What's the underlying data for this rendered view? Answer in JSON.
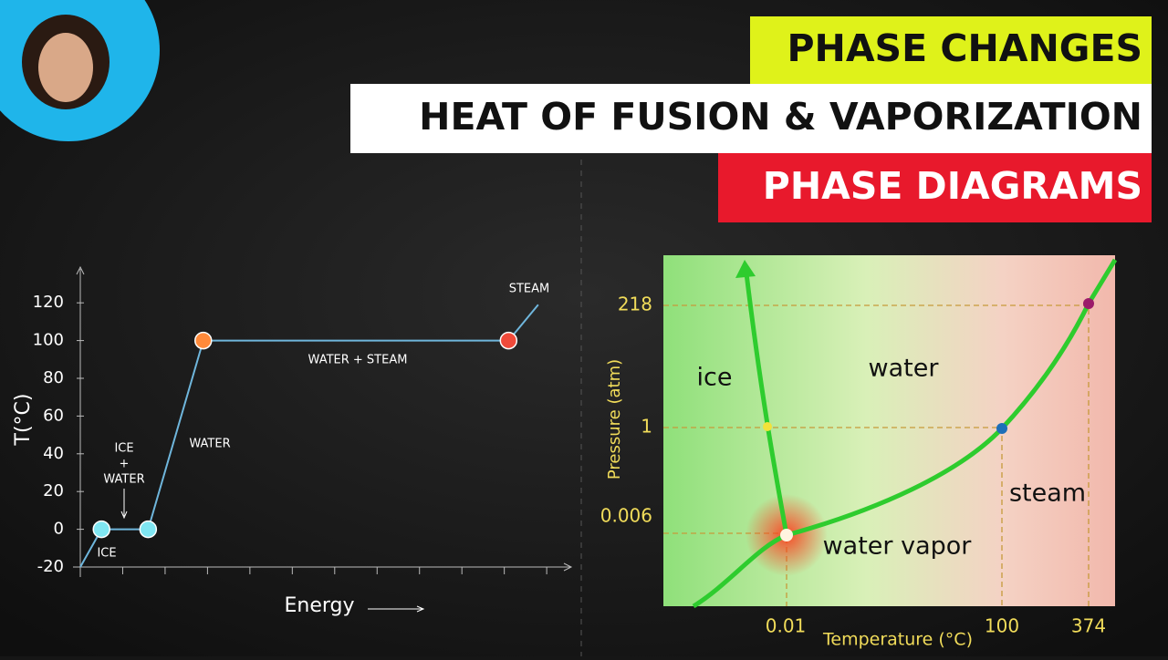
{
  "banners": [
    "PHASE CHANGES",
    "HEAT OF FUSION & VAPORIZATION",
    "PHASE DIAGRAMS"
  ],
  "chart_data": {
    "type": "line",
    "y_label": "T(°C)",
    "x_label": "Energy",
    "x": [
      0,
      0.5,
      1.6,
      2.9,
      10.1,
      10.8
    ],
    "values": [
      -20,
      0,
      0,
      100,
      100,
      119
    ],
    "color": "#6fb6dc",
    "xlim": [
      0,
      11.6
    ],
    "xticks": [
      0,
      1,
      2,
      3,
      4,
      5,
      6,
      7,
      8,
      9,
      10,
      11
    ],
    "ylim": [
      -20,
      137
    ],
    "yticks": [
      -20,
      0,
      20,
      40,
      60,
      80,
      100,
      120
    ],
    "annotations": [
      "ICE",
      "ICE",
      "+",
      "WATER",
      "WATER",
      "WATER + STEAM",
      "STEAM"
    ]
  },
  "phase_diagram": {
    "x_label": "Temperature (°C)",
    "y_label": "Pressure (atm)",
    "xticks": [
      "0.01",
      "100",
      "374"
    ],
    "yticks": [
      "218",
      "1",
      "0.006"
    ],
    "regions": [
      "ice",
      "water",
      "steam",
      "water vapor"
    ]
  }
}
